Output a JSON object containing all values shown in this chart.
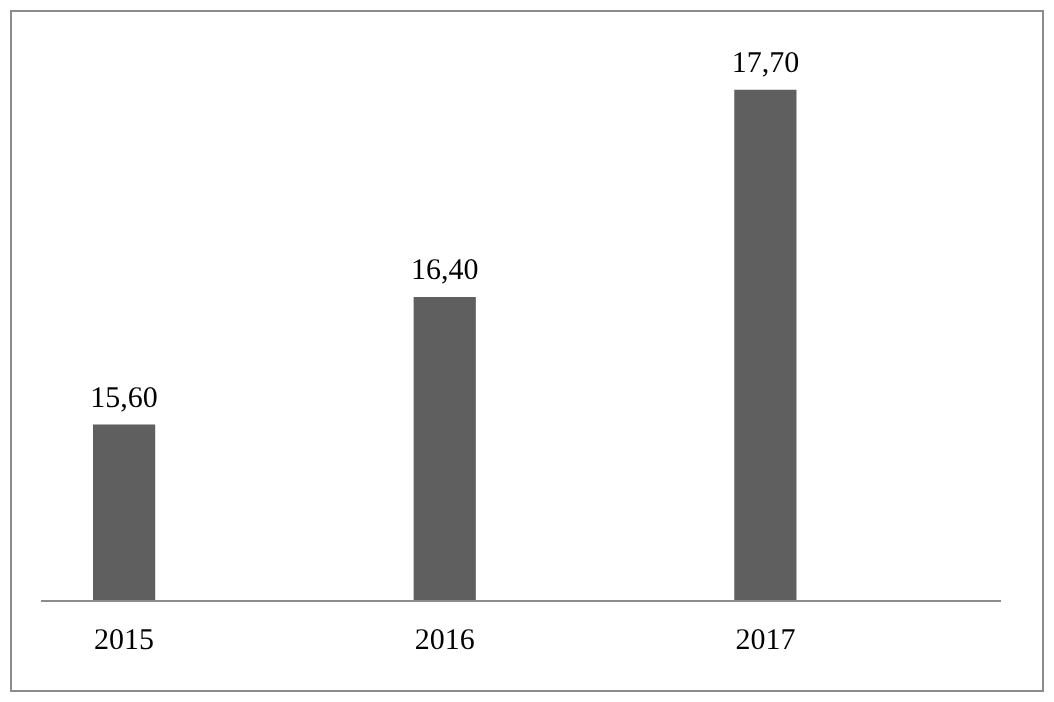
{
  "chart_data": {
    "type": "bar",
    "categories": [
      "2015",
      "2016",
      "2017"
    ],
    "values": [
      15.6,
      16.4,
      17.7
    ],
    "value_labels": [
      "15,60",
      "16,40",
      "17,70"
    ],
    "color": "#5f5f5f",
    "ylim": [
      14.5,
      18.2
    ]
  }
}
